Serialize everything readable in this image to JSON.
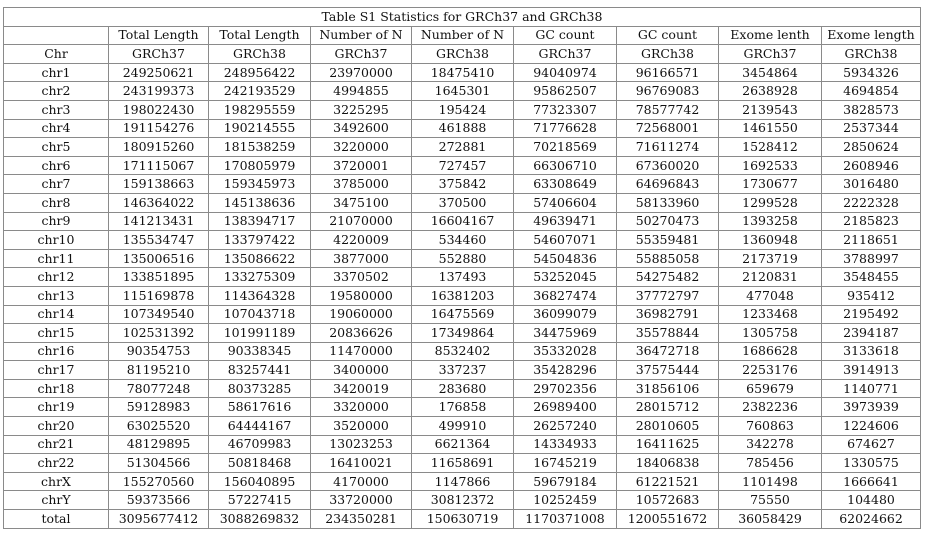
{
  "table": {
    "caption": "Table S1 Statistics for GRCh37 and GRCh38",
    "header_row1": [
      "",
      "Total Length",
      "Total Length",
      "Number of N",
      "Number of N",
      "GC count",
      "GC count",
      "Exome lenth",
      "Exome length"
    ],
    "header_row2": [
      "Chr",
      "GRCh37",
      "GRCh38",
      "GRCh37",
      "GRCh38",
      "GRCh37",
      "GRCh38",
      "GRCh37",
      "GRCh38"
    ],
    "rows": [
      [
        "chr1",
        "249250621",
        "248956422",
        "23970000",
        "18475410",
        "94040974",
        "96166571",
        "3454864",
        "5934326"
      ],
      [
        "chr2",
        "243199373",
        "242193529",
        "4994855",
        "1645301",
        "95862507",
        "96769083",
        "2638928",
        "4694854"
      ],
      [
        "chr3",
        "198022430",
        "198295559",
        "3225295",
        "195424",
        "77323307",
        "78577742",
        "2139543",
        "3828573"
      ],
      [
        "chr4",
        "191154276",
        "190214555",
        "3492600",
        "461888",
        "71776628",
        "72568001",
        "1461550",
        "2537344"
      ],
      [
        "chr5",
        "180915260",
        "181538259",
        "3220000",
        "272881",
        "70218569",
        "71611274",
        "1528412",
        "2850624"
      ],
      [
        "chr6",
        "171115067",
        "170805979",
        "3720001",
        "727457",
        "66306710",
        "67360020",
        "1692533",
        "2608946"
      ],
      [
        "chr7",
        "159138663",
        "159345973",
        "3785000",
        "375842",
        "63308649",
        "64696843",
        "1730677",
        "3016480"
      ],
      [
        "chr8",
        "146364022",
        "145138636",
        "3475100",
        "370500",
        "57406604",
        "58133960",
        "1299528",
        "2222328"
      ],
      [
        "chr9",
        "141213431",
        "138394717",
        "21070000",
        "16604167",
        "49639471",
        "50270473",
        "1393258",
        "2185823"
      ],
      [
        "chr10",
        "135534747",
        "133797422",
        "4220009",
        "534460",
        "54607071",
        "55359481",
        "1360948",
        "2118651"
      ],
      [
        "chr11",
        "135006516",
        "135086622",
        "3877000",
        "552880",
        "54504836",
        "55885058",
        "2173719",
        "3788997"
      ],
      [
        "chr12",
        "133851895",
        "133275309",
        "3370502",
        "137493",
        "53252045",
        "54275482",
        "2120831",
        "3548455"
      ],
      [
        "chr13",
        "115169878",
        "114364328",
        "19580000",
        "16381203",
        "36827474",
        "37772797",
        "477048",
        "935412"
      ],
      [
        "chr14",
        "107349540",
        "107043718",
        "19060000",
        "16475569",
        "36099079",
        "36982791",
        "1233468",
        "2195492"
      ],
      [
        "chr15",
        "102531392",
        "101991189",
        "20836626",
        "17349864",
        "34475969",
        "35578844",
        "1305758",
        "2394187"
      ],
      [
        "chr16",
        "90354753",
        "90338345",
        "11470000",
        "8532402",
        "35332028",
        "36472718",
        "1686628",
        "3133618"
      ],
      [
        "chr17",
        "81195210",
        "83257441",
        "3400000",
        "337237",
        "35428296",
        "37575444",
        "2253176",
        "3914913"
      ],
      [
        "chr18",
        "78077248",
        "80373285",
        "3420019",
        "283680",
        "29702356",
        "31856106",
        "659679",
        "1140771"
      ],
      [
        "chr19",
        "59128983",
        "58617616",
        "3320000",
        "176858",
        "26989400",
        "28015712",
        "2382236",
        "3973939"
      ],
      [
        "chr20",
        "63025520",
        "64444167",
        "3520000",
        "499910",
        "26257240",
        "28010605",
        "760863",
        "1224606"
      ],
      [
        "chr21",
        "48129895",
        "46709983",
        "13023253",
        "6621364",
        "14334933",
        "16411625",
        "342278",
        "674627"
      ],
      [
        "chr22",
        "51304566",
        "50818468",
        "16410021",
        "11658691",
        "16745219",
        "18406838",
        "785456",
        "1330575"
      ],
      [
        "chrX",
        "155270560",
        "156040895",
        "4170000",
        "1147866",
        "59679184",
        "61221521",
        "1101498",
        "1666641"
      ],
      [
        "chrY",
        "59373566",
        "57227415",
        "33720000",
        "30812372",
        "10252459",
        "10572683",
        "75550",
        "104480"
      ],
      [
        "total",
        "3095677412",
        "3088269832",
        "234350281",
        "150630719",
        "1170371008",
        "1200551672",
        "36058429",
        "62024662"
      ]
    ]
  }
}
